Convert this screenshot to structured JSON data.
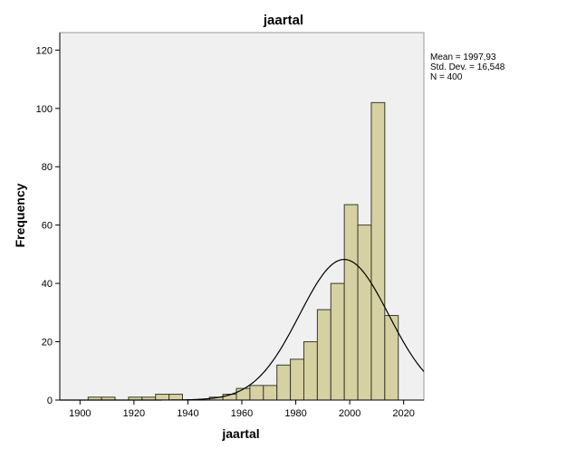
{
  "chart_data": {
    "type": "bar",
    "title": "jaartal",
    "xlabel": "jaartal",
    "ylabel": "Frequency",
    "xlim": [
      1892.5,
      2027.5
    ],
    "ylim": [
      0,
      126
    ],
    "x_ticks": [
      "1900",
      "1920",
      "1940",
      "1960",
      "1980",
      "2000",
      "2020"
    ],
    "y_ticks": [
      "0",
      "20",
      "40",
      "60",
      "80",
      "100",
      "120"
    ],
    "bin_width": 5,
    "bins": [
      {
        "start": 1903,
        "value": 1
      },
      {
        "start": 1908,
        "value": 1
      },
      {
        "start": 1918,
        "value": 1
      },
      {
        "start": 1923,
        "value": 1
      },
      {
        "start": 1928,
        "value": 2
      },
      {
        "start": 1933,
        "value": 2
      },
      {
        "start": 1948,
        "value": 1
      },
      {
        "start": 1953,
        "value": 2
      },
      {
        "start": 1958,
        "value": 4
      },
      {
        "start": 1963,
        "value": 5
      },
      {
        "start": 1968,
        "value": 5
      },
      {
        "start": 1973,
        "value": 12
      },
      {
        "start": 1978,
        "value": 14
      },
      {
        "start": 1983,
        "value": 20
      },
      {
        "start": 1988,
        "value": 31
      },
      {
        "start": 1993,
        "value": 40
      },
      {
        "start": 1998,
        "value": 67
      },
      {
        "start": 2003,
        "value": 60
      },
      {
        "start": 2008,
        "value": 102
      },
      {
        "start": 2013,
        "value": 29
      }
    ],
    "normal_curve": {
      "mean": 1997.93,
      "sd": 16.548,
      "n": 400
    },
    "stats_text": [
      "Mean = 1997,93",
      "Std. Dev. = 16,548",
      "N = 400"
    ],
    "grid": false,
    "legend_placement": "right",
    "colors": {
      "bar_fill": "#d6d1a2",
      "bar_stroke": "#3a3a2a",
      "plot_background": "#f0f0f0",
      "curve": "#000000"
    }
  }
}
